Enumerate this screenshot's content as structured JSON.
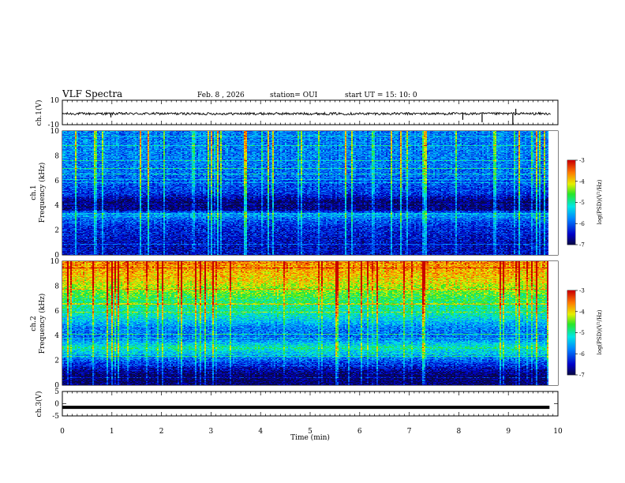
{
  "header": {
    "title": "VLF Spectra",
    "date": "Feb. 8 , 2026",
    "station": "station= OUI",
    "start": "start UT =   15: 10: 0"
  },
  "chart_data": [
    {
      "type": "line",
      "title": "ch.1(V)",
      "xlabel": "",
      "ylabel": "ch.1(V)",
      "xlim": [
        0,
        10
      ],
      "ylim": [
        -10,
        10
      ],
      "yticks": [
        "10",
        "-10"
      ],
      "baseline": -1,
      "noise_amplitude": 1,
      "spikes": [
        {
          "x": 0.98,
          "y": -4
        },
        {
          "x": 8.08,
          "y": -6
        },
        {
          "x": 8.47,
          "y": -8
        },
        {
          "x": 9.09,
          "y": -10
        },
        {
          "x": 9.15,
          "y": 3
        }
      ]
    },
    {
      "type": "heatmap",
      "title": "ch.1 Frequency (kHz)",
      "ylabel": "ch.1\nFrequency (kHz)",
      "xlim": [
        0,
        10
      ],
      "ylim": [
        0,
        10
      ],
      "data_end_x": 9.83,
      "yticks": [
        "0",
        "2",
        "4",
        "6",
        "8",
        "10"
      ],
      "colorbar": {
        "label": "log(PSD)(V²/Hz)",
        "range": [
          -7,
          -3
        ],
        "ticks": [
          "-7",
          "-6",
          "-5",
          "-4",
          "-3"
        ]
      },
      "level_profile": [
        {
          "f": 0,
          "v": -6.5
        },
        {
          "f": 1,
          "v": -6.5
        },
        {
          "f": 2.2,
          "v": -6.3
        },
        {
          "f": 2.8,
          "v": -6.0
        },
        {
          "f": 3.3,
          "v": -5.6
        },
        {
          "f": 3.6,
          "v": -6.7
        },
        {
          "f": 4.2,
          "v": -6.9
        },
        {
          "f": 5,
          "v": -6.2
        },
        {
          "f": 6.5,
          "v": -5.9
        },
        {
          "f": 8,
          "v": -5.8
        },
        {
          "f": 10,
          "v": -5.8
        }
      ]
    },
    {
      "type": "heatmap",
      "title": "ch.2 Frequency (kHz)",
      "ylabel": "ch.2\nFrequency (kHz)",
      "xlim": [
        0,
        10
      ],
      "ylim": [
        0,
        10
      ],
      "data_end_x": 9.83,
      "yticks": [
        "0",
        "2",
        "4",
        "6",
        "8",
        "10"
      ],
      "colorbar": {
        "label": "log(PSD)(V²/Hz)",
        "range": [
          -7,
          -3
        ],
        "ticks": [
          "-7",
          "-6",
          "-5",
          "-4",
          "-3"
        ]
      },
      "level_profile": [
        {
          "f": 0,
          "v": -6.9
        },
        {
          "f": 0.8,
          "v": -6.9
        },
        {
          "f": 1.5,
          "v": -6.4
        },
        {
          "f": 2.4,
          "v": -5.6
        },
        {
          "f": 3.0,
          "v": -5.0
        },
        {
          "f": 3.8,
          "v": -5.9
        },
        {
          "f": 4.6,
          "v": -5.8
        },
        {
          "f": 5.5,
          "v": -5.2
        },
        {
          "f": 7,
          "v": -4.7
        },
        {
          "f": 8.5,
          "v": -4.0
        },
        {
          "f": 10,
          "v": -3.6
        }
      ]
    },
    {
      "type": "line",
      "title": "ch.3(V)",
      "xlabel": "Time  (min)",
      "ylabel": "ch.3(V)",
      "xlim": [
        0,
        10
      ],
      "ylim": [
        -5,
        5
      ],
      "yticks": [
        "5",
        "0",
        "-5"
      ],
      "xticks": [
        "0",
        "1",
        "2",
        "3",
        "4",
        "5",
        "6",
        "7",
        "8",
        "9",
        "10"
      ],
      "baseline": -1.5,
      "data_end_x": 9.83
    }
  ]
}
